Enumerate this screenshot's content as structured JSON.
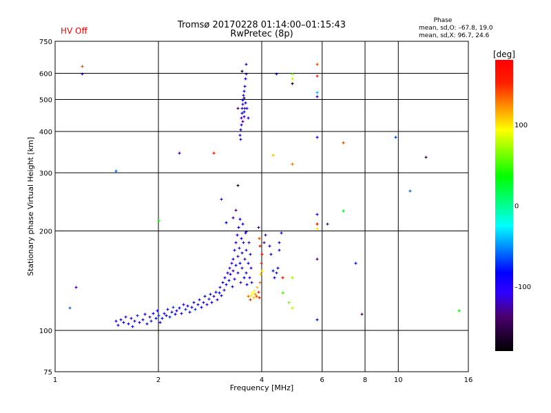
{
  "status": {
    "hv_label": "HV Off",
    "hv_color": "#ff0000"
  },
  "header": {
    "title_line1": "Tromsø 20170228 01:14:00–01:15:43",
    "title_line2": "RwPretec (8p)",
    "phase_heading": "Phase",
    "phase_o": "mean, sd,O: –67.8, 19.0",
    "phase_x": "mean, sd,X:  96.7, 24.6"
  },
  "colorbar": {
    "label": "[deg]",
    "range": [
      -180,
      180
    ],
    "ticks": [
      100,
      0,
      -100
    ],
    "tick_labels": [
      "100",
      "0",
      "–100"
    ]
  },
  "chart_data": {
    "type": "scatter",
    "title": "Tromsø 20170228 01:14:00–01:15:43 RwPretec (8p)",
    "xlabel": "Frequency [MHz]",
    "ylabel": "Stationary phase Virtual Height [km]",
    "xscale": "log",
    "yscale": "log",
    "xlim": [
      1,
      16
    ],
    "ylim": [
      75,
      750
    ],
    "xticks": [
      1,
      2,
      4,
      6,
      8,
      10,
      16
    ],
    "xtick_labels": [
      "1",
      "2",
      "4",
      "6",
      "8",
      "10",
      "16"
    ],
    "yticks": [
      75,
      100,
      200,
      300,
      400,
      500,
      600,
      750
    ],
    "ytick_labels": [
      "75",
      "100",
      "200",
      "300",
      "400",
      "500",
      "600",
      "750"
    ],
    "grid": true,
    "color_by": "phase (deg)",
    "points_fields": [
      "freq_MHz",
      "height_km",
      "phase_deg"
    ],
    "points": [
      [
        1.5,
        107,
        -110
      ],
      [
        1.52,
        104,
        -100
      ],
      [
        1.55,
        108,
        -95
      ],
      [
        1.58,
        106,
        -85
      ],
      [
        1.6,
        110,
        -120
      ],
      [
        1.63,
        105,
        -90
      ],
      [
        1.66,
        109,
        -110
      ],
      [
        1.68,
        103,
        -80
      ],
      [
        1.7,
        107,
        -95
      ],
      [
        1.73,
        111,
        -75
      ],
      [
        1.76,
        106,
        -100
      ],
      [
        1.8,
        108,
        -85
      ],
      [
        1.82,
        112,
        -95
      ],
      [
        1.85,
        105,
        -80
      ],
      [
        1.88,
        110,
        -110
      ],
      [
        1.9,
        107,
        -75
      ],
      [
        1.93,
        113,
        -90
      ],
      [
        1.96,
        109,
        -85
      ],
      [
        1.98,
        115,
        -100
      ],
      [
        2.0,
        111,
        -70
      ],
      [
        2.02,
        106,
        -90
      ],
      [
        2.05,
        109,
        -80
      ],
      [
        2.08,
        113,
        -105
      ],
      [
        2.1,
        111,
        -85
      ],
      [
        2.12,
        116,
        -95
      ],
      [
        2.15,
        110,
        -75
      ],
      [
        2.18,
        114,
        -90
      ],
      [
        2.2,
        118,
        -70
      ],
      [
        2.23,
        112,
        -85
      ],
      [
        2.26,
        115,
        -100
      ],
      [
        2.3,
        117,
        -80
      ],
      [
        2.33,
        113,
        -90
      ],
      [
        2.36,
        120,
        -110
      ],
      [
        2.4,
        116,
        -75
      ],
      [
        2.43,
        119,
        -95
      ],
      [
        2.46,
        114,
        -80
      ],
      [
        2.5,
        118,
        -100
      ],
      [
        2.53,
        122,
        -85
      ],
      [
        2.56,
        116,
        -70
      ],
      [
        2.6,
        120,
        -90
      ],
      [
        2.63,
        124,
        -105
      ],
      [
        2.66,
        118,
        -80
      ],
      [
        2.7,
        122,
        -95
      ],
      [
        2.73,
        127,
        -85
      ],
      [
        2.76,
        120,
        -110
      ],
      [
        2.8,
        125,
        -75
      ],
      [
        2.83,
        129,
        -95
      ],
      [
        2.86,
        122,
        -85
      ],
      [
        2.9,
        127,
        -120
      ],
      [
        2.93,
        131,
        -90
      ],
      [
        2.96,
        124,
        -100
      ],
      [
        3.0,
        130,
        -80
      ],
      [
        3.02,
        135,
        -110
      ],
      [
        3.05,
        128,
        -95
      ],
      [
        3.08,
        140,
        -85
      ],
      [
        3.1,
        133,
        -115
      ],
      [
        3.12,
        145,
        -100
      ],
      [
        3.15,
        138,
        -90
      ],
      [
        3.18,
        150,
        -120
      ],
      [
        3.2,
        142,
        -80
      ],
      [
        3.22,
        155,
        -105
      ],
      [
        3.24,
        148,
        -95
      ],
      [
        3.26,
        160,
        -115
      ],
      [
        3.28,
        136,
        -85
      ],
      [
        3.3,
        165,
        -100
      ],
      [
        3.3,
        152,
        -125
      ],
      [
        3.32,
        175,
        -90
      ],
      [
        3.33,
        143,
        -110
      ],
      [
        3.35,
        185,
        -100
      ],
      [
        3.36,
        158,
        -80
      ],
      [
        3.38,
        195,
        -95
      ],
      [
        3.4,
        168,
        -115
      ],
      [
        3.4,
        150,
        -100
      ],
      [
        3.42,
        205,
        -85
      ],
      [
        3.43,
        178,
        -110
      ],
      [
        3.45,
        160,
        -90
      ],
      [
        3.46,
        140,
        -120
      ],
      [
        3.48,
        190,
        -100
      ],
      [
        3.5,
        172,
        -80
      ],
      [
        3.5,
        155,
        -105
      ],
      [
        3.52,
        210,
        -95
      ],
      [
        3.53,
        185,
        -115
      ],
      [
        3.55,
        145,
        -85
      ],
      [
        3.56,
        165,
        -100
      ],
      [
        3.58,
        198,
        -120
      ],
      [
        3.6,
        150,
        -90
      ],
      [
        3.6,
        175,
        -110
      ],
      [
        3.62,
        138,
        -95
      ],
      [
        3.64,
        160,
        -80
      ],
      [
        3.66,
        185,
        -115
      ],
      [
        3.68,
        145,
        -100
      ],
      [
        3.7,
        170,
        -90
      ],
      [
        3.72,
        155,
        -110
      ],
      [
        3.74,
        140,
        -95
      ],
      [
        3.3,
        220,
        -130
      ],
      [
        3.35,
        232,
        -140
      ],
      [
        3.4,
        275,
        -170
      ],
      [
        3.05,
        250,
        -120
      ],
      [
        3.15,
        212,
        -85
      ],
      [
        3.45,
        218,
        -90
      ],
      [
        3.72,
        128,
        100
      ],
      [
        3.75,
        130,
        95
      ],
      [
        3.78,
        126,
        110
      ],
      [
        3.8,
        132,
        90
      ],
      [
        3.82,
        129,
        120
      ],
      [
        3.85,
        127,
        140
      ],
      [
        3.7,
        124,
        150
      ],
      [
        3.65,
        127,
        130
      ],
      [
        3.88,
        135,
        110
      ],
      [
        3.9,
        131,
        160
      ],
      [
        3.92,
        126,
        150
      ],
      [
        3.95,
        140,
        130
      ],
      [
        3.97,
        148,
        110
      ],
      [
        4.0,
        152,
        100
      ],
      [
        3.98,
        160,
        150
      ],
      [
        4.0,
        170,
        160
      ],
      [
        3.95,
        180,
        165
      ],
      [
        3.92,
        190,
        140
      ],
      [
        3.6,
        200,
        -80
      ],
      [
        3.9,
        205,
        -130
      ],
      [
        3.45,
        390,
        -100
      ],
      [
        3.46,
        405,
        -90
      ],
      [
        3.47,
        380,
        -110
      ],
      [
        3.48,
        420,
        -95
      ],
      [
        3.49,
        440,
        -120
      ],
      [
        3.5,
        455,
        -85
      ],
      [
        3.5,
        470,
        -100
      ],
      [
        3.51,
        485,
        -110
      ],
      [
        3.52,
        500,
        -90
      ],
      [
        3.52,
        430,
        -130
      ],
      [
        3.53,
        515,
        -100
      ],
      [
        3.54,
        460,
        -80
      ],
      [
        3.55,
        530,
        -95
      ],
      [
        3.55,
        445,
        -110
      ],
      [
        3.56,
        550,
        -85
      ],
      [
        3.57,
        470,
        -120
      ],
      [
        3.58,
        580,
        -100
      ],
      [
        3.58,
        490,
        -90
      ],
      [
        3.59,
        600,
        -110
      ],
      [
        3.6,
        640,
        -95
      ],
      [
        3.62,
        470,
        -100
      ],
      [
        3.65,
        440,
        -115
      ],
      [
        3.4,
        470,
        -140
      ],
      [
        3.55,
        505,
        -160
      ],
      [
        3.5,
        610,
        -170
      ],
      [
        4.05,
        185,
        -120
      ],
      [
        4.1,
        195,
        -130
      ],
      [
        4.2,
        180,
        -90
      ],
      [
        4.25,
        170,
        -85
      ],
      [
        4.3,
        152,
        -80
      ],
      [
        4.35,
        145,
        -90
      ],
      [
        4.4,
        150,
        -100
      ],
      [
        4.45,
        155,
        -95
      ],
      [
        4.5,
        175,
        -110
      ],
      [
        4.5,
        185,
        -100
      ],
      [
        4.6,
        130,
        50
      ],
      [
        4.6,
        145,
        160
      ],
      [
        4.8,
        122,
        60
      ],
      [
        4.9,
        145,
        70
      ],
      [
        4.9,
        117,
        80
      ],
      [
        4.55,
        198,
        -90
      ],
      [
        1.2,
        630,
        140
      ],
      [
        1.2,
        600,
        -110
      ],
      [
        1.15,
        135,
        -120
      ],
      [
        1.1,
        117,
        -60
      ],
      [
        1.5,
        305,
        -60
      ],
      [
        2.0,
        215,
        40
      ],
      [
        2.3,
        345,
        -130
      ],
      [
        2.9,
        345,
        160
      ],
      [
        4.3,
        340,
        110
      ],
      [
        4.4,
        600,
        -80
      ],
      [
        4.9,
        600,
        60
      ],
      [
        4.9,
        580,
        80
      ],
      [
        4.9,
        560,
        -170
      ],
      [
        4.9,
        320,
        130
      ],
      [
        5.8,
        640,
        140
      ],
      [
        5.8,
        590,
        150
      ],
      [
        5.8,
        525,
        -40
      ],
      [
        5.8,
        510,
        -120
      ],
      [
        5.8,
        385,
        -100
      ],
      [
        5.8,
        225,
        -110
      ],
      [
        5.8,
        210,
        170
      ],
      [
        5.8,
        203,
        100
      ],
      [
        5.8,
        165,
        -130
      ],
      [
        5.8,
        108,
        -80
      ],
      [
        6.2,
        210,
        -130
      ],
      [
        6.9,
        370,
        140
      ],
      [
        6.9,
        230,
        30
      ],
      [
        7.5,
        160,
        -80
      ],
      [
        7.8,
        112,
        -140
      ],
      [
        9.8,
        385,
        -70
      ],
      [
        10.8,
        265,
        -60
      ],
      [
        12.0,
        335,
        -150
      ],
      [
        15.0,
        115,
        40
      ]
    ]
  }
}
